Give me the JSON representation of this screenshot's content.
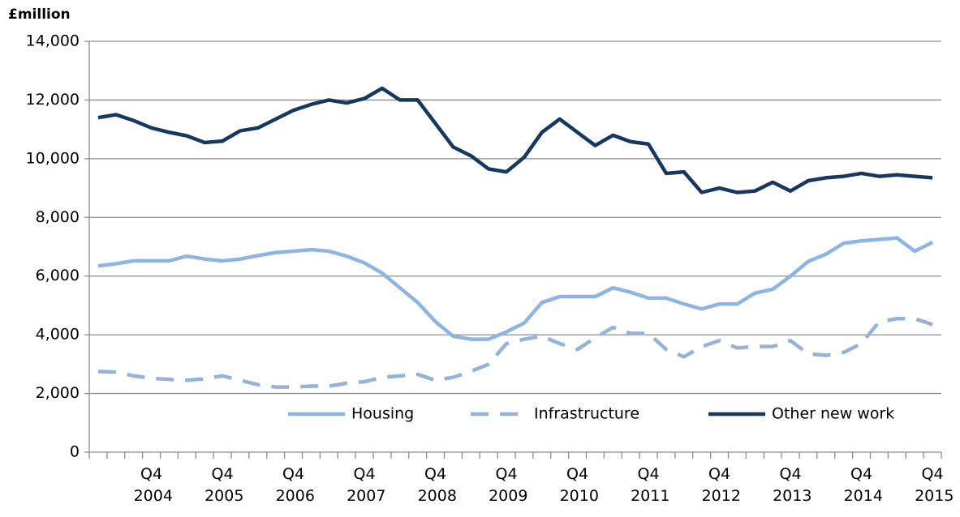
{
  "chart_data": {
    "type": "line",
    "y_axis_label": "£million",
    "categories": [
      null,
      null,
      null,
      "Q4 2004",
      null,
      null,
      null,
      "Q4 2005",
      null,
      null,
      null,
      "Q4 2006",
      null,
      null,
      null,
      "Q4 2007",
      null,
      null,
      null,
      "Q4 2008",
      null,
      null,
      null,
      "Q4 2009",
      null,
      null,
      null,
      "Q4 2010",
      null,
      null,
      null,
      "Q4 2011",
      null,
      null,
      null,
      "Q4 2012",
      null,
      null,
      null,
      "Q4 2013",
      null,
      null,
      null,
      "Q4 2014",
      null,
      null,
      null,
      "Q4 2015"
    ],
    "series": [
      {
        "name": "Housing",
        "color": "#8db4e2",
        "dash": false,
        "values": [
          6350,
          6420,
          6520,
          6520,
          6520,
          6680,
          6580,
          6520,
          6580,
          6700,
          6800,
          6850,
          6900,
          6850,
          6680,
          6450,
          6100,
          5600,
          5100,
          4450,
          3950,
          3850,
          3850,
          4100,
          4400,
          5100,
          5300,
          5300,
          5300,
          5600,
          5450,
          5250,
          5250,
          5050,
          4880,
          5050,
          5050,
          5420,
          5550,
          6000,
          6500,
          6750,
          7120,
          7200,
          7250,
          7300,
          6850,
          7150
        ]
      },
      {
        "name": "Infrastructure",
        "color": "#95b3d7",
        "dash": true,
        "values": [
          2750,
          2730,
          2600,
          2520,
          2480,
          2450,
          2500,
          2600,
          2450,
          2300,
          2220,
          2220,
          2250,
          2250,
          2350,
          2400,
          2550,
          2600,
          2650,
          2450,
          2550,
          2750,
          3000,
          3700,
          3850,
          3950,
          3700,
          3500,
          3900,
          4250,
          4050,
          4050,
          3500,
          3250,
          3600,
          3800,
          3550,
          3600,
          3600,
          3800,
          3350,
          3300,
          3400,
          3700,
          4450,
          4550,
          4550,
          4350
        ]
      },
      {
        "name": "Other new work",
        "color": "#17375e",
        "dash": false,
        "values": [
          11400,
          11500,
          11300,
          11050,
          10900,
          10780,
          10550,
          10600,
          10950,
          11050,
          11350,
          11650,
          11850,
          12000,
          11900,
          12050,
          12400,
          12000,
          12000,
          11200,
          10400,
          10100,
          9650,
          9550,
          10050,
          10900,
          11350,
          10900,
          10450,
          10800,
          10580,
          10500,
          9500,
          9550,
          8850,
          9000,
          8850,
          8900,
          9200,
          8900,
          9250,
          9350,
          9400,
          9500,
          9400,
          9450,
          9400,
          9350
        ]
      }
    ],
    "ylim": [
      0,
      14000
    ],
    "yticks": [
      0,
      {
        "value": 2000,
        "label": "2,000"
      },
      {
        "value": 4000,
        "label": "4,000"
      },
      {
        "value": 6000,
        "label": "6,000"
      },
      {
        "value": 8000,
        "label": "8,000"
      },
      {
        "value": 10000,
        "label": "10,000"
      },
      {
        "value": 12000,
        "label": "12,000"
      },
      {
        "value": 14000,
        "label": "14,000"
      }
    ],
    "grid": true
  }
}
